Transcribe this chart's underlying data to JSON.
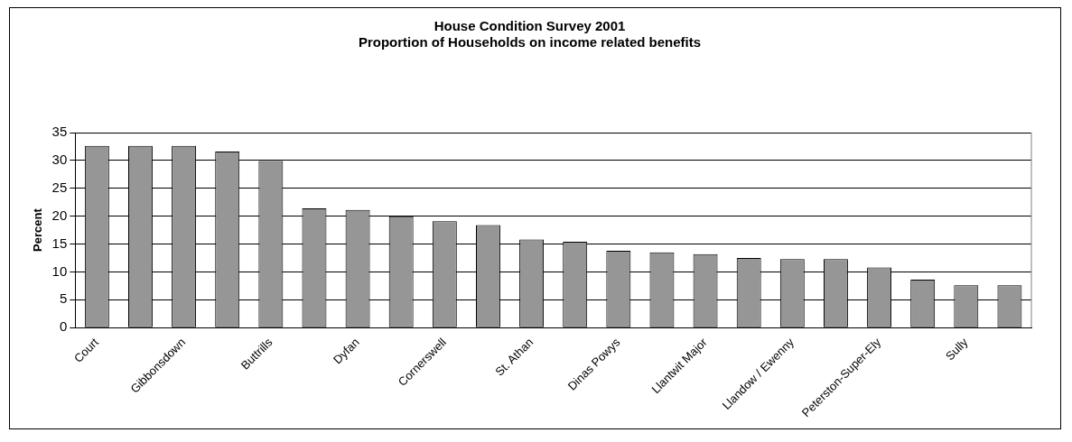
{
  "chart_data": {
    "type": "bar",
    "title": "House Condition Survey 2001",
    "subtitle": "Proportion of Households on income related benefits",
    "ylabel": "Percent",
    "categories": [
      "Court",
      null,
      "Gibbonsdown",
      null,
      "Buttrills",
      null,
      "Dyfan",
      null,
      "Cornerswell",
      null,
      "St. Athan",
      null,
      "Dinas Powys",
      null,
      "Llantwit Major",
      null,
      "Llandow / Ewenny",
      null,
      "Peterston-Super-Ely",
      null,
      "Sully",
      null
    ],
    "values": [
      32.6,
      32.6,
      32.6,
      31.6,
      29.9,
      21.4,
      21.1,
      20.0,
      19.1,
      18.4,
      15.8,
      15.4,
      13.8,
      13.5,
      13.2,
      12.5,
      12.3,
      12.3,
      10.8,
      8.6,
      7.6,
      7.6
    ],
    "color": "#969696",
    "ylim": [
      0,
      35
    ],
    "yticks": [
      0,
      5,
      10,
      15,
      20,
      25,
      30,
      35
    ],
    "grid": "y",
    "legend": false
  }
}
